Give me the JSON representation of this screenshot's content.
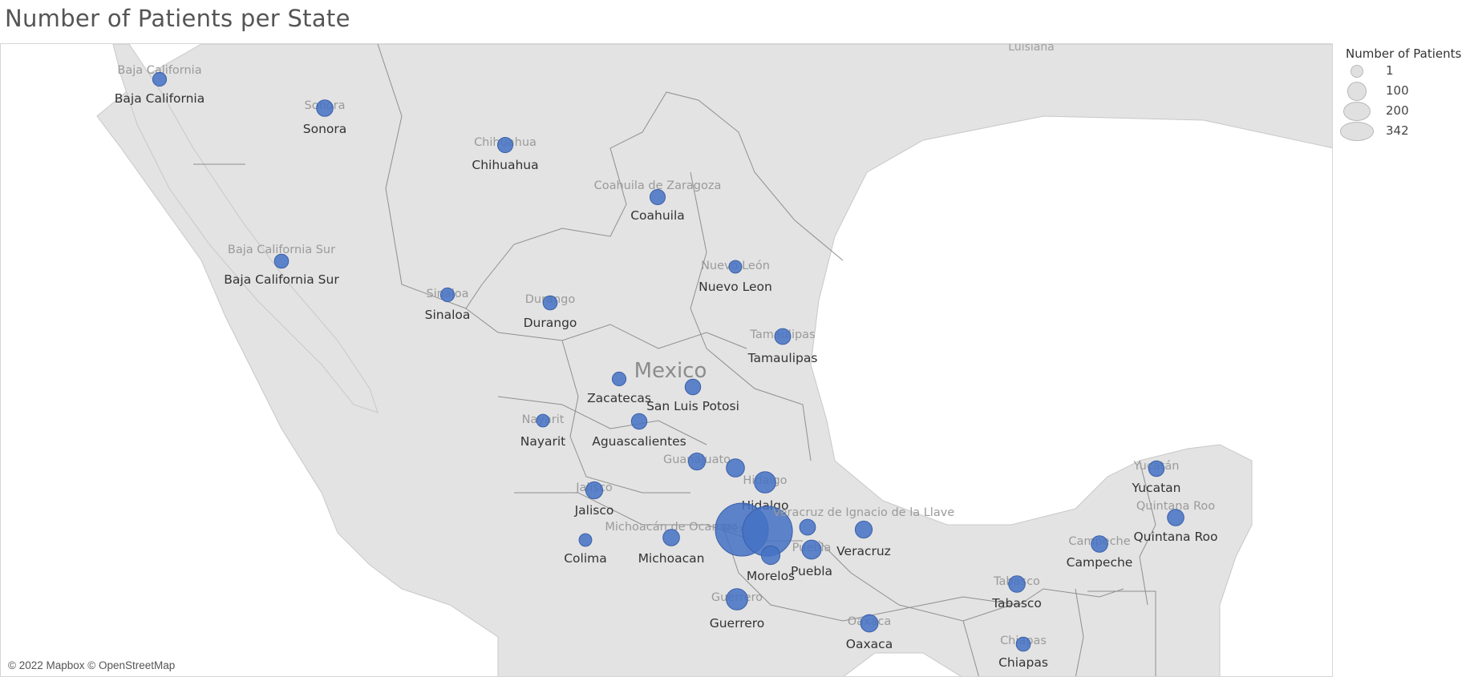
{
  "title": "Number of Patients per State",
  "attribution": "© 2022 Mapbox © OpenStreetMap",
  "country_label": "Mexico",
  "neighbor_label": "Luisiana",
  "legend": {
    "title": "Number of Patients",
    "items": [
      {
        "label": "1",
        "value": 1
      },
      {
        "label": "100",
        "value": 100
      },
      {
        "label": "200",
        "value": 200
      },
      {
        "label": "342",
        "value": 342
      }
    ]
  },
  "colors": {
    "bubble": "#4472c4",
    "land": "#e3e3e3",
    "water": "#ffffff"
  },
  "states": [
    {
      "base_label": "Baja California",
      "label": "Baja California",
      "patients": 12
    },
    {
      "base_label": "Sonora",
      "label": "Sonora",
      "patients": 20
    },
    {
      "base_label": "Chihuahua",
      "label": "Chihuahua",
      "patients": 16
    },
    {
      "base_label": "Coahuila de Zaragoza",
      "label": "Coahuila",
      "patients": 16
    },
    {
      "base_label": "Baja California Sur",
      "label": "Baja California Sur",
      "patients": 13
    },
    {
      "base_label": "Nuevo León",
      "label": "Nuevo Leon",
      "patients": 9
    },
    {
      "base_label": "Sinaloa",
      "label": "Sinaloa",
      "patients": 12
    },
    {
      "base_label": "Durango",
      "label": "Durango",
      "patients": 13
    },
    {
      "base_label": "Tamaulipas",
      "label": "Tamaulipas",
      "patients": 18
    },
    {
      "base_label": "",
      "label": "Zacatecas",
      "patients": 12
    },
    {
      "base_label": "",
      "label": "San Luis Potosi",
      "patients": 17
    },
    {
      "base_label": "Nayarit",
      "label": "Nayarit",
      "patients": 9
    },
    {
      "base_label": "",
      "label": "Aguascalientes",
      "patients": 17
    },
    {
      "base_label": "Guanajuato",
      "label": "",
      "patients": 22
    },
    {
      "base_label": "",
      "label": "",
      "patients": 26
    },
    {
      "base_label": "Hidalgo",
      "label": "Hidalgo",
      "patients": 40
    },
    {
      "base_label": "Jalisco",
      "label": "Jalisco",
      "patients": 22
    },
    {
      "base_label": "Michoacán de Ocampo",
      "label": "Michoacan",
      "patients": 20
    },
    {
      "base_label": "",
      "label": "Colima",
      "patients": 9
    },
    {
      "base_label": "México",
      "label": "",
      "patients": 342
    },
    {
      "base_label": "",
      "label": "",
      "patients": 300
    },
    {
      "base_label": "",
      "label": "",
      "patients": 18
    },
    {
      "base_label": "",
      "label": "Morelos",
      "patients": 28
    },
    {
      "base_label": "Puebla",
      "label": "Puebla",
      "patients": 30
    },
    {
      "base_label": "Veracruz de Ignacio de la Llave",
      "label": "Veracruz",
      "patients": 22
    },
    {
      "base_label": "Guerrero",
      "label": "Guerrero",
      "patients": 40
    },
    {
      "base_label": "Oaxaca",
      "label": "Oaxaca",
      "patients": 24
    },
    {
      "base_label": "Tabasco",
      "label": "Tabasco",
      "patients": 20
    },
    {
      "base_label": "Chiapas",
      "label": "Chiapas",
      "patients": 13
    },
    {
      "base_label": "Campeche",
      "label": "Campeche",
      "patients": 20
    },
    {
      "base_label": "Yucatán",
      "label": "Yucatan",
      "patients": 17
    },
    {
      "base_label": "Quintana Roo",
      "label": "Quintana Roo",
      "patients": 20
    }
  ]
}
